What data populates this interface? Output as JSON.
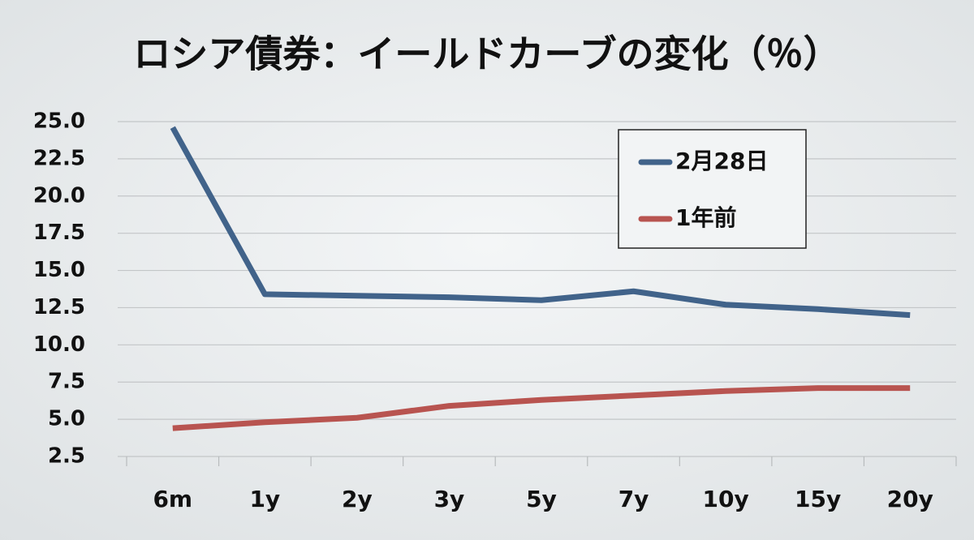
{
  "chart_data": {
    "type": "line",
    "title": "ロシア債券：イールドカーブの変化（％）",
    "categories": [
      "6m",
      "1y",
      "2y",
      "3y",
      "5y",
      "7y",
      "10y",
      "15y",
      "20y"
    ],
    "series": [
      {
        "name": "2月28日",
        "color": "#41638a",
        "values": [
          24.6,
          13.4,
          13.3,
          13.2,
          13.0,
          13.6,
          12.7,
          12.4,
          12.0
        ]
      },
      {
        "name": "1年前",
        "color": "#b85450",
        "values": [
          4.4,
          4.8,
          5.1,
          5.9,
          6.3,
          6.6,
          6.9,
          7.1,
          7.1
        ]
      }
    ],
    "ylim": [
      2.5,
      25
    ],
    "yticks": [
      2.5,
      {
        "value": 5,
        "label": "5.0"
      },
      7.5,
      {
        "value": 10,
        "label": "10.0"
      },
      12.5,
      {
        "value": 15,
        "label": "15.0"
      },
      17.5,
      {
        "value": 20,
        "label": "20.0"
      },
      22.5,
      {
        "value": 25,
        "label": "25.0"
      }
    ],
    "grid": true,
    "legend": "top-right"
  }
}
